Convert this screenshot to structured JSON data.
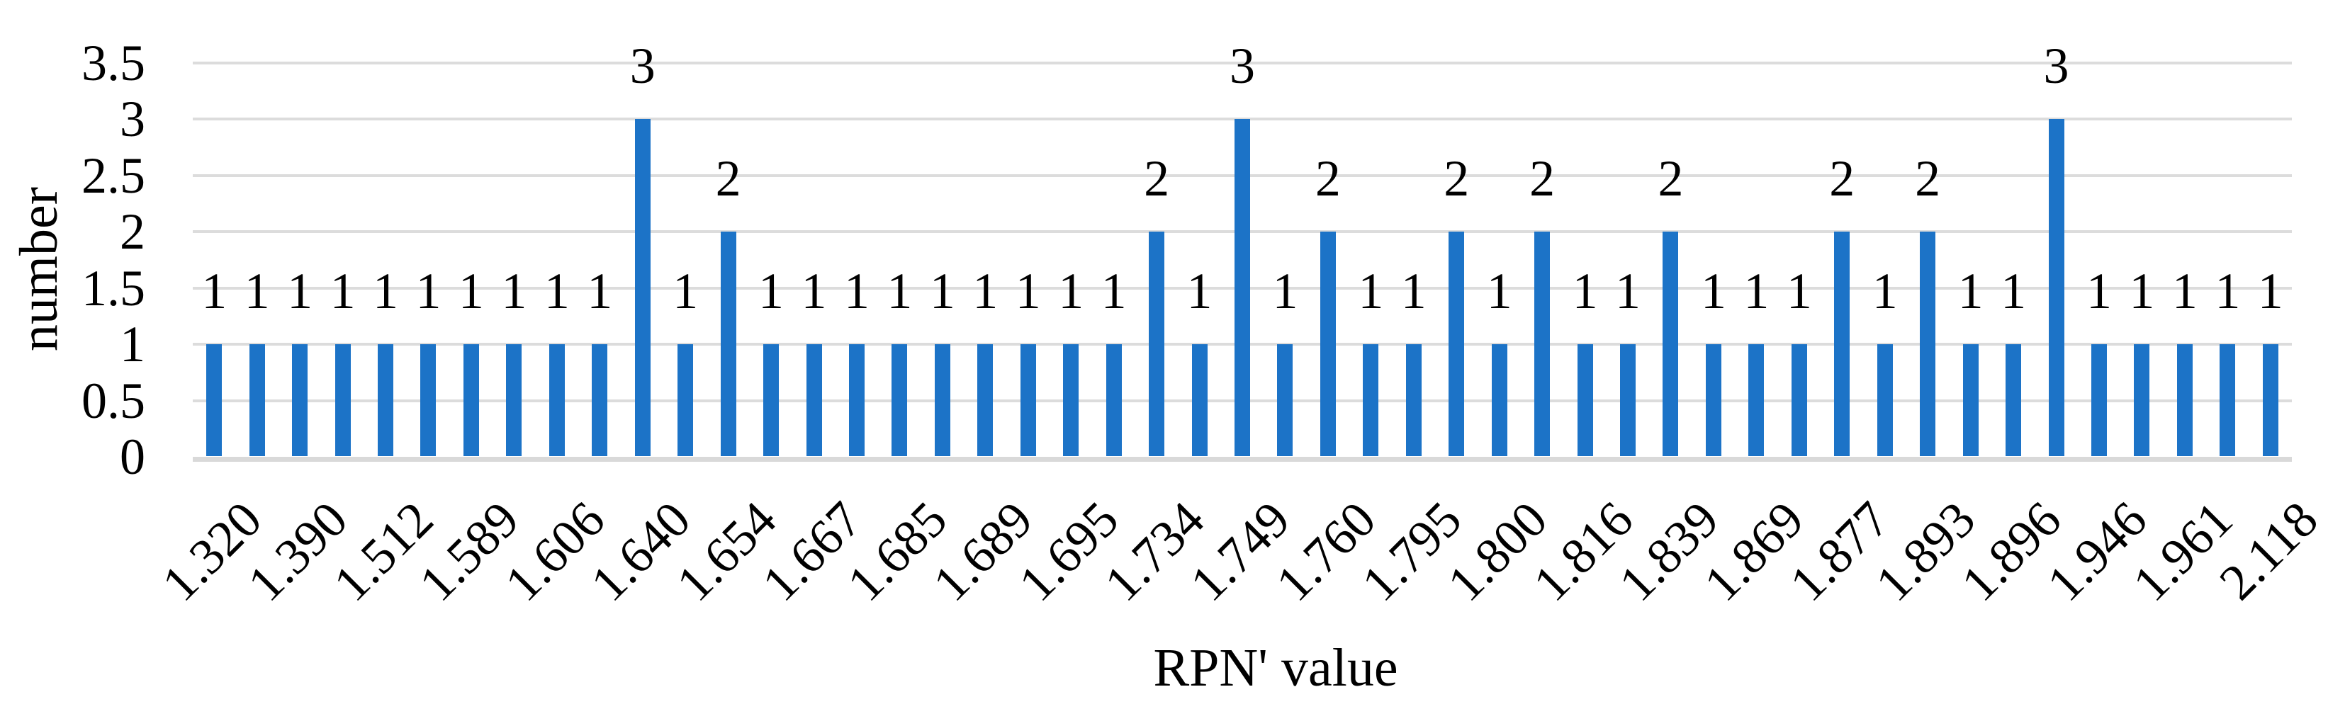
{
  "chart_data": {
    "type": "bar",
    "title": "",
    "xlabel": "RPN' value",
    "ylabel": "number",
    "ylim": [
      0,
      3.5
    ],
    "ytick_labels": [
      "0",
      "0.5",
      "1",
      "1.5",
      "2",
      "2.5",
      "3",
      "3.5"
    ],
    "grid": "horizontal gridlines on",
    "legend_position": "none",
    "data_labels_shown": true,
    "bar_count": 49,
    "values": [
      1,
      1,
      1,
      1,
      1,
      1,
      1,
      1,
      1,
      1,
      3,
      1,
      2,
      1,
      1,
      1,
      1,
      1,
      1,
      1,
      1,
      1,
      2,
      1,
      3,
      1,
      2,
      1,
      1,
      2,
      1,
      2,
      1,
      1,
      2,
      1,
      1,
      1,
      2,
      1,
      2,
      1,
      1,
      3,
      1,
      1,
      1,
      1,
      1
    ],
    "x_tick_labels": [
      "1.320",
      "1.390",
      "1.512",
      "1.589",
      "1.606",
      "1.640",
      "1.654",
      "1.667",
      "1.685",
      "1.689",
      "1.695",
      "1.734",
      "1.749",
      "1.760",
      "1.795",
      "1.800",
      "1.816",
      "1.839",
      "1.869",
      "1.877",
      "1.893",
      "1.896",
      "1.946",
      "1.961",
      "2.118"
    ],
    "x_tick_placement": "every other bar starting with the first bar",
    "x_tick_rotation_deg": -45,
    "colors": {
      "bar": "#1C73C7",
      "gridline": "#DCDCDC",
      "axis_line": "#D9D9D9",
      "text": "#000000",
      "background": "#FFFFFF"
    }
  }
}
